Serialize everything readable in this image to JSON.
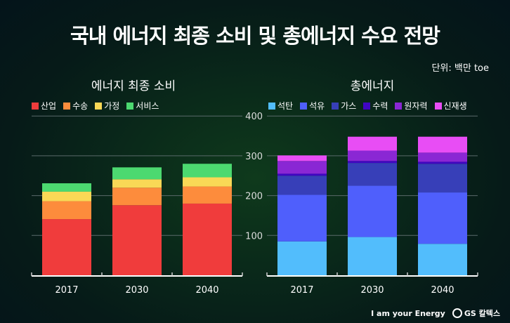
{
  "title": "국내 에너지 최종 소비 및 총에너지 수요 전망",
  "unit": "단위: 백만 toe",
  "footer": {
    "slogan": "I am your Energy",
    "logo": "GS 칼텍스"
  },
  "chart_data": [
    {
      "type": "bar",
      "stacked": true,
      "title": "에너지 최종 소비",
      "categories": [
        "2017",
        "2030",
        "2040"
      ],
      "ylim": [
        0,
        400
      ],
      "yticks": [
        100,
        200,
        300,
        400
      ],
      "grid": true,
      "legend": "top-left",
      "series": [
        {
          "name": "산업",
          "color": "#f03c3c",
          "values": [
            141,
            176,
            180
          ]
        },
        {
          "name": "수송",
          "color": "#fd8c3c",
          "values": [
            45,
            44,
            43
          ]
        },
        {
          "name": "가정",
          "color": "#f9d856",
          "values": [
            24,
            21,
            23
          ]
        },
        {
          "name": "서비스",
          "color": "#4cd970",
          "values": [
            21,
            30,
            34
          ]
        }
      ]
    },
    {
      "type": "bar",
      "stacked": true,
      "title": "총에너지",
      "categories": [
        "2017",
        "2030",
        "2040"
      ],
      "ylim": [
        0,
        400
      ],
      "yticks": [
        100,
        200,
        300,
        400
      ],
      "grid": true,
      "legend": "top-left",
      "series": [
        {
          "name": "석탄",
          "color": "#52bdfc",
          "values": [
            85,
            96,
            79
          ]
        },
        {
          "name": "석유",
          "color": "#4f5ffc",
          "values": [
            117,
            129,
            129
          ]
        },
        {
          "name": "가스",
          "color": "#373fb8",
          "values": [
            48,
            57,
            72
          ]
        },
        {
          "name": "수력",
          "color": "#4006c2",
          "values": [
            5,
            5,
            5
          ]
        },
        {
          "name": "원자력",
          "color": "#8a27d4",
          "values": [
            32,
            26,
            23
          ]
        },
        {
          "name": "신재생",
          "color": "#e84df5",
          "values": [
            14,
            35,
            40
          ]
        }
      ]
    }
  ]
}
